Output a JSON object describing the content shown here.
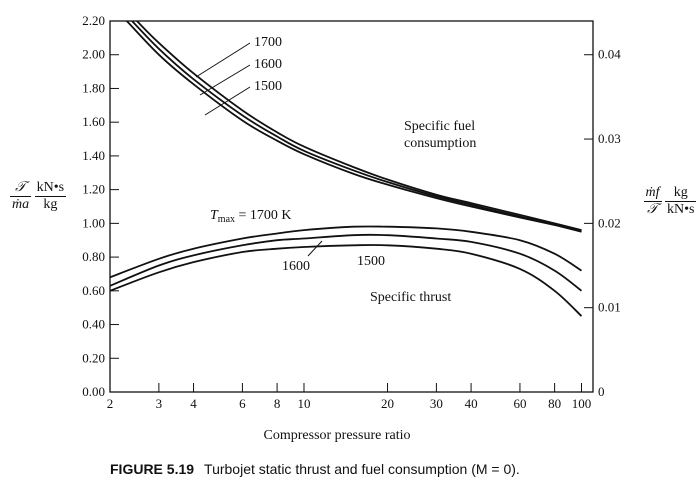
{
  "chart_data": {
    "type": "line",
    "title": "",
    "xlabel": "Compressor pressure ratio",
    "xscale": "log",
    "xlim": [
      2,
      110
    ],
    "x_ticks": [
      2,
      3,
      4,
      6,
      8,
      10,
      20,
      30,
      40,
      60,
      80,
      100
    ],
    "x_tick_labels": [
      "2",
      "3",
      "4",
      "6",
      "8",
      "10",
      "20",
      "30",
      "40",
      "60",
      "80",
      "100"
    ],
    "y_left": {
      "label_num": "𝒯",
      "label_den": "ṁa",
      "units_num": "kN•s",
      "units_den": "kg",
      "ylim": [
        0,
        2.2
      ],
      "ticks": [
        0.0,
        0.2,
        0.4,
        0.6,
        0.8,
        1.0,
        1.2,
        1.4,
        1.6,
        1.8,
        2.0,
        2.2
      ],
      "tick_labels": [
        "0.00",
        "0.20",
        "0.40",
        "0.60",
        "0.80",
        "1.00",
        "1.20",
        "1.40",
        "1.60",
        "1.80",
        "2.00",
        "2.20"
      ]
    },
    "y_right": {
      "label_num": "ṁf",
      "label_den": "𝒯",
      "units_num": "kg",
      "units_den": "kN•s",
      "ylim": [
        0,
        0.044
      ],
      "ticks": [
        0,
        0.01,
        0.02,
        0.03,
        0.04
      ],
      "tick_labels": [
        "0",
        "0.01",
        "0.02",
        "0.03",
        "0.04"
      ]
    },
    "series": [
      {
        "name": "Specific thrust, Tmax = 1700 K",
        "axis": "left",
        "x": [
          2,
          3,
          4,
          6,
          8,
          10,
          15,
          20,
          30,
          40,
          60,
          80,
          100
        ],
        "y": [
          0.68,
          0.79,
          0.85,
          0.91,
          0.94,
          0.96,
          0.98,
          0.98,
          0.97,
          0.95,
          0.9,
          0.82,
          0.72
        ]
      },
      {
        "name": "Specific thrust, Tmax = 1600 K",
        "axis": "left",
        "x": [
          2,
          3,
          4,
          6,
          8,
          10,
          15,
          20,
          30,
          40,
          60,
          80,
          100
        ],
        "y": [
          0.63,
          0.75,
          0.81,
          0.87,
          0.9,
          0.91,
          0.93,
          0.93,
          0.91,
          0.89,
          0.82,
          0.72,
          0.6
        ]
      },
      {
        "name": "Specific thrust, Tmax = 1500 K",
        "axis": "left",
        "x": [
          2,
          3,
          4,
          6,
          8,
          10,
          15,
          20,
          30,
          40,
          60,
          80,
          100
        ],
        "y": [
          0.6,
          0.71,
          0.77,
          0.83,
          0.85,
          0.86,
          0.87,
          0.87,
          0.85,
          0.82,
          0.73,
          0.6,
          0.45
        ]
      },
      {
        "name": "Specific fuel consumption, Tmax = 1700 K",
        "axis": "right",
        "x": [
          2.3,
          3,
          4,
          6,
          8,
          10,
          15,
          20,
          30,
          40,
          60,
          80,
          100
        ],
        "y": [
          0.044,
          0.04,
          0.0365,
          0.0322,
          0.0298,
          0.0282,
          0.0259,
          0.0246,
          0.023,
          0.022,
          0.0207,
          0.0198,
          0.019
        ]
      },
      {
        "name": "Specific fuel consumption, Tmax = 1600 K",
        "axis": "right",
        "x": [
          2.4,
          3,
          4,
          6,
          8,
          10,
          15,
          20,
          30,
          40,
          60,
          80,
          100
        ],
        "y": [
          0.044,
          0.0407,
          0.0371,
          0.0328,
          0.0303,
          0.0286,
          0.0263,
          0.0249,
          0.0232,
          0.0222,
          0.0208,
          0.0199,
          0.0191
        ]
      },
      {
        "name": "Specific fuel consumption, Tmax = 1500 K",
        "axis": "right",
        "x": [
          2.5,
          3,
          4,
          6,
          8,
          10,
          15,
          20,
          30,
          40,
          60,
          80,
          100
        ],
        "y": [
          0.044,
          0.0414,
          0.0378,
          0.0334,
          0.0308,
          0.0291,
          0.0267,
          0.0252,
          0.0234,
          0.0224,
          0.021,
          0.02,
          0.0192
        ]
      }
    ],
    "annotations": {
      "sfc_temps": [
        "1700",
        "1600",
        "1500"
      ],
      "sfc_label_1": "Specific fuel",
      "sfc_label_2": "consumption",
      "tmax_label_prefix": "T",
      "tmax_label_sub": "max",
      "tmax_label_value": " = 1700 K",
      "thrust_t1": "1600",
      "thrust_t2": "1500",
      "thrust_label": "Specific thrust"
    }
  },
  "caption": {
    "figure": "FIGURE 5.19",
    "text": "Turbojet static thrust and fuel consumption (M = 0)."
  }
}
